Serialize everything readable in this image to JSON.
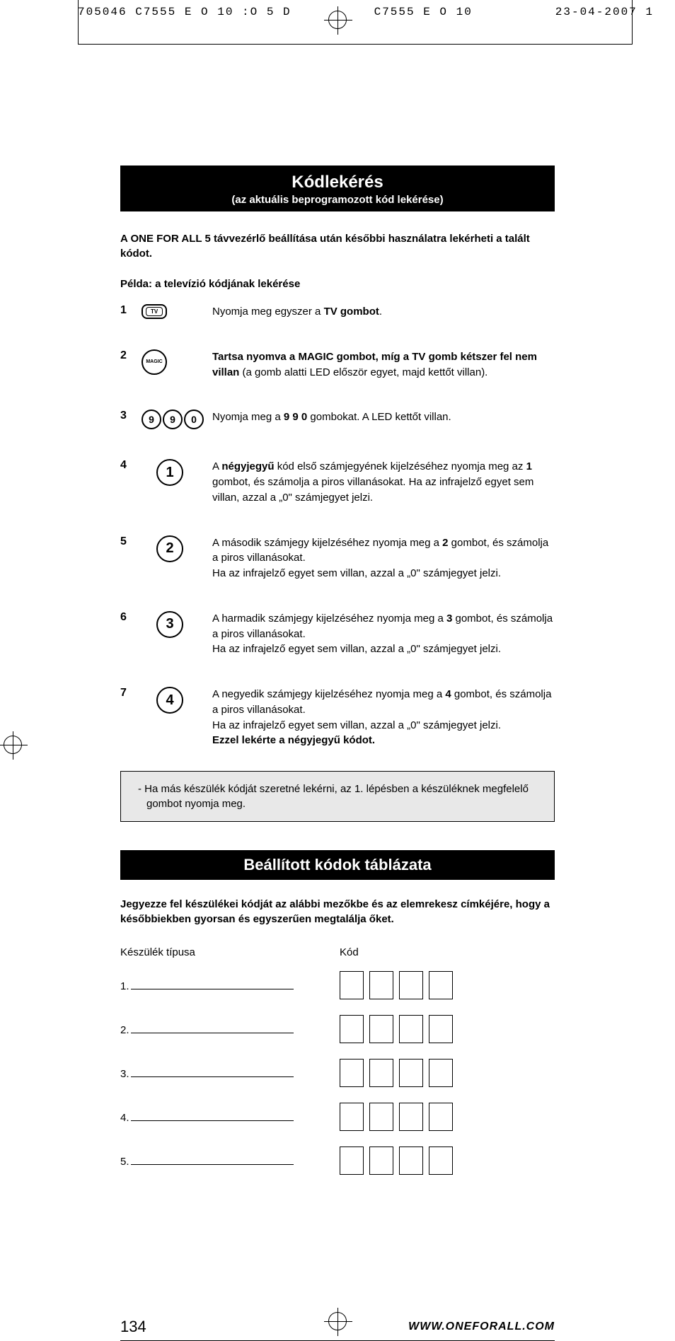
{
  "printHeader": {
    "left": "705046  C7555 E  O 10 :O  5 D",
    "center": "C7555 E  O 10",
    "right": "23-04-2007 1"
  },
  "section1": {
    "title": "Kódlekérés",
    "subtitle": "(az aktuális beprogramozott kód lekérése)",
    "intro": "A ONE FOR ALL 5 távvezérlő beállítása után későbbi használatra lekérheti a talált kódot.",
    "exampleTitle": "Példa: a televízió kódjának lekérése"
  },
  "steps": [
    {
      "num": "1",
      "iconType": "tv",
      "iconLabel": "TV",
      "textParts": [
        {
          "t": "Nyomja meg egyszer a ",
          "b": false
        },
        {
          "t": "TV gombot",
          "b": true
        },
        {
          "t": ".",
          "b": false
        }
      ]
    },
    {
      "num": "2",
      "iconType": "magic",
      "iconLabel": "MAGIC",
      "textParts": [
        {
          "t": "Tartsa nyomva a MAGIC gombot, míg a TV gomb kétszer fel nem villan",
          "b": true
        },
        {
          "t": " (a gomb alatti LED először egyet, majd kettőt villan).",
          "b": false
        }
      ]
    },
    {
      "num": "3",
      "iconType": "digits3",
      "digits": [
        "9",
        "9",
        "0"
      ],
      "textParts": [
        {
          "t": "Nyomja meg a ",
          "b": false
        },
        {
          "t": "9 9 0",
          "b": true
        },
        {
          "t": " gombokat. A LED kettőt villan.",
          "b": false
        }
      ]
    },
    {
      "num": "4",
      "iconType": "large-digit",
      "digit": "1",
      "textParts": [
        {
          "t": "A ",
          "b": false
        },
        {
          "t": "négyjegyű",
          "b": true
        },
        {
          "t": " kód első számjegyének kijelzéséhez nyomja meg az ",
          "b": false
        },
        {
          "t": "1",
          "b": true
        },
        {
          "t": " gombot, és számolja a piros villanásokat. Ha az infrajelző egyet sem villan, azzal a „0\" számjegyet jelzi.",
          "b": false
        }
      ]
    },
    {
      "num": "5",
      "iconType": "large-digit",
      "digit": "2",
      "textParts": [
        {
          "t": "A második számjegy kijelzéséhez nyomja meg a ",
          "b": false
        },
        {
          "t": "2",
          "b": true
        },
        {
          "t": " gombot, és számolja a piros villanásokat.\nHa az infrajelző egyet sem villan, azzal a „0\" számjegyet jelzi.",
          "b": false
        }
      ]
    },
    {
      "num": "6",
      "iconType": "large-digit",
      "digit": "3",
      "textParts": [
        {
          "t": "A harmadik számjegy kijelzéséhez nyomja meg a ",
          "b": false
        },
        {
          "t": "3",
          "b": true
        },
        {
          "t": " gombot, és számolja a piros villanásokat.\nHa az infrajelző egyet sem villan, azzal a „0\" számjegyet jelzi.",
          "b": false
        }
      ]
    },
    {
      "num": "7",
      "iconType": "large-digit",
      "digit": "4",
      "textParts": [
        {
          "t": "A negyedik számjegy kijelzéséhez nyomja meg a ",
          "b": false
        },
        {
          "t": "4",
          "b": true
        },
        {
          "t": " gombot, és számolja a piros villanásokat.\nHa az infrajelző egyet sem villan, azzal a „0\" számjegyet jelzi.\n",
          "b": false
        },
        {
          "t": "Ezzel lekérte a négyjegyű kódot.",
          "b": true
        }
      ]
    }
  ],
  "note": "-  Ha más készülék kódját szeretné lekérni, az 1. lépésben a készüléknek megfelelő gombot nyomja meg.",
  "section2": {
    "title": "Beállított kódok táblázata",
    "intro": "Jegyezze fel készülékei kódját az alábbi mezőkbe és az elemrekesz címkéjére, hogy a későbbiekben gyorsan és egyszerűen megtalálja őket.",
    "col1": "Készülék típusa",
    "col2": "Kód",
    "rows": [
      "1.",
      "2.",
      "3.",
      "4.",
      "5."
    ]
  },
  "footer": {
    "pageNum": "134",
    "website": "WWW.ONEFORALL.COM"
  }
}
